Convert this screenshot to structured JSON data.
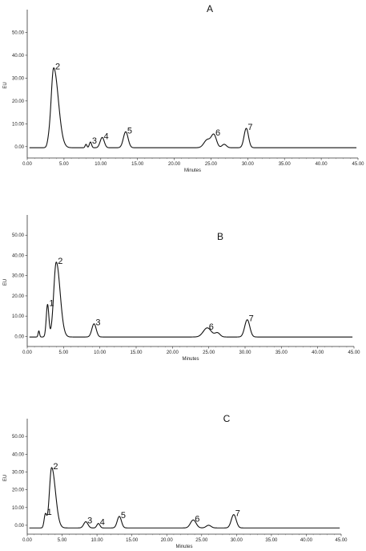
{
  "chart_data": [
    {
      "type": "line",
      "title": "A",
      "xlabel": "Minutes",
      "ylabel": "EU",
      "xlim": [
        0,
        45
      ],
      "ylim": [
        -5,
        60
      ],
      "xticks": [
        "0.00",
        "5.00",
        "10.00",
        "15.00",
        "20.00",
        "25.00",
        "30.00",
        "35.00",
        "40.00",
        "45.00"
      ],
      "yticks": [
        "0.00",
        "10.00",
        "20.00",
        "30.00",
        "40.00",
        "50.00"
      ],
      "baseline": -0.5,
      "peaks": [
        {
          "label": "",
          "x": 2.9,
          "height": 1.5,
          "width": 0.18
        },
        {
          "label": "2",
          "x": 3.6,
          "height": 35,
          "width": 0.35,
          "tail": 1.8
        },
        {
          "label": "",
          "x": 8.0,
          "height": 1.5,
          "width": 0.12
        },
        {
          "label": "3",
          "x": 8.6,
          "height": 2.5,
          "width": 0.15
        },
        {
          "label": "4",
          "x": 10.2,
          "height": 4.5,
          "width": 0.28
        },
        {
          "label": "5",
          "x": 13.4,
          "height": 7,
          "width": 0.32
        },
        {
          "label": "",
          "x": 24.5,
          "height": 3.5,
          "width": 0.45
        },
        {
          "label": "6",
          "x": 25.4,
          "height": 5.5,
          "width": 0.35
        },
        {
          "label": "",
          "x": 26.8,
          "height": 1.5,
          "width": 0.3
        },
        {
          "label": "7",
          "x": 29.8,
          "height": 8.5,
          "width": 0.3
        }
      ]
    },
    {
      "type": "line",
      "title": "B",
      "xlabel": "Minutes",
      "ylabel": "EU",
      "xlim": [
        0,
        45
      ],
      "ylim": [
        -5,
        60
      ],
      "xticks": [
        "0.00",
        "5.00",
        "10.00",
        "15.00",
        "20.00",
        "25.00",
        "30.00",
        "35.00",
        "40.00",
        "45.00"
      ],
      "yticks": [
        "0.00",
        "10.00",
        "20.00",
        "30.00",
        "40.00",
        "50.00"
      ],
      "baseline": -0.3,
      "peaks": [
        {
          "label": "",
          "x": 1.6,
          "height": 3,
          "width": 0.1
        },
        {
          "label": "1",
          "x": 2.8,
          "height": 16,
          "width": 0.18
        },
        {
          "label": "2",
          "x": 4.0,
          "height": 37,
          "width": 0.35,
          "tail": 1.5
        },
        {
          "label": "3",
          "x": 9.2,
          "height": 6.5,
          "width": 0.3
        },
        {
          "label": "6",
          "x": 24.8,
          "height": 4.5,
          "width": 0.55
        },
        {
          "label": "",
          "x": 26.2,
          "height": 2.0,
          "width": 0.35
        },
        {
          "label": "7",
          "x": 30.3,
          "height": 8.5,
          "width": 0.35
        }
      ]
    },
    {
      "type": "line",
      "title": "C",
      "xlabel": "Minutes",
      "ylabel": "EU",
      "xlim": [
        0,
        45
      ],
      "ylim": [
        -5,
        60
      ],
      "xticks": [
        "0.00",
        "5.00",
        "10.00",
        "15.00",
        "20.00",
        "25.00",
        "30.00",
        "35.00",
        "40.00",
        "45.00"
      ],
      "yticks": [
        "0.00",
        "10.00",
        "20.00",
        "30.00",
        "40.00",
        "50.00"
      ],
      "baseline": -1.5,
      "peaks": [
        {
          "label": "1",
          "x": 2.6,
          "height": 7.5,
          "width": 0.18
        },
        {
          "label": "2",
          "x": 3.5,
          "height": 34,
          "width": 0.32,
          "tail": 1.7
        },
        {
          "label": "3",
          "x": 8.4,
          "height": 3.5,
          "width": 0.3
        },
        {
          "label": "4",
          "x": 10.2,
          "height": 2.5,
          "width": 0.22
        },
        {
          "label": "5",
          "x": 13.2,
          "height": 6.5,
          "width": 0.3
        },
        {
          "label": "6",
          "x": 23.8,
          "height": 4.5,
          "width": 0.4
        },
        {
          "label": "",
          "x": 26.0,
          "height": 1.5,
          "width": 0.35
        },
        {
          "label": "7",
          "x": 29.6,
          "height": 7.5,
          "width": 0.35
        }
      ]
    }
  ]
}
